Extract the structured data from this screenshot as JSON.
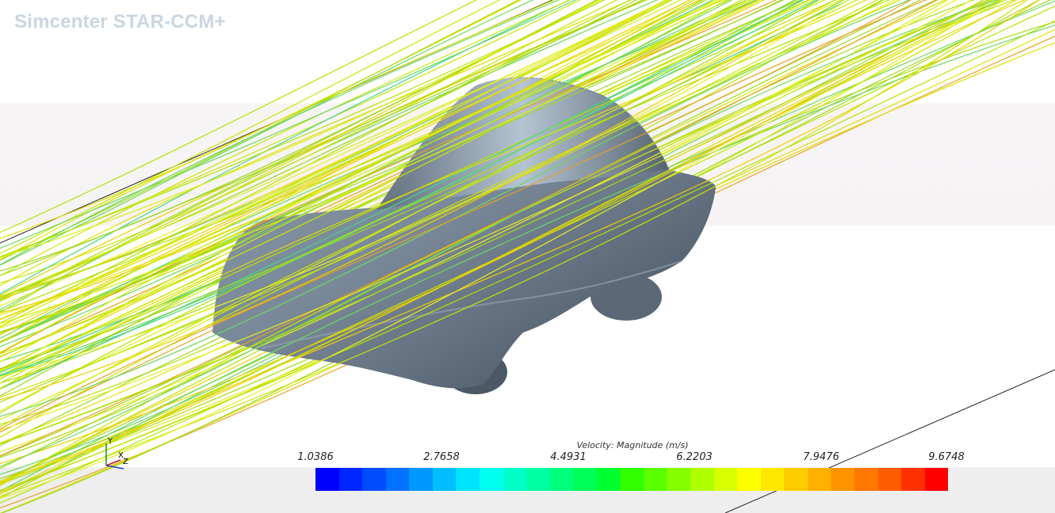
{
  "app": {
    "watermark": "Simcenter STAR-CCM+"
  },
  "legend": {
    "title": "Velocity: Magnitude (m/s)",
    "ticks": [
      "1.0386",
      "2.7658",
      "4.4931",
      "6.2203",
      "7.9476",
      "9.6748"
    ],
    "colors": [
      "#0000ff",
      "#0026ff",
      "#004cff",
      "#0072ff",
      "#0098ff",
      "#00beff",
      "#00e4ff",
      "#00ffee",
      "#00ffc8",
      "#00ffa2",
      "#00ff7c",
      "#00ff56",
      "#00ff30",
      "#30ff00",
      "#5aff00",
      "#84ff00",
      "#aeff00",
      "#d8ff00",
      "#ffff00",
      "#ffe800",
      "#ffcc00",
      "#ffb000",
      "#ff9400",
      "#ff7800",
      "#ff5c00",
      "#ff3000",
      "#ff0000"
    ]
  },
  "axes": {
    "x": "X",
    "y": "Y",
    "z": "Z"
  },
  "model": {
    "body_color": "#6f7e8e"
  }
}
